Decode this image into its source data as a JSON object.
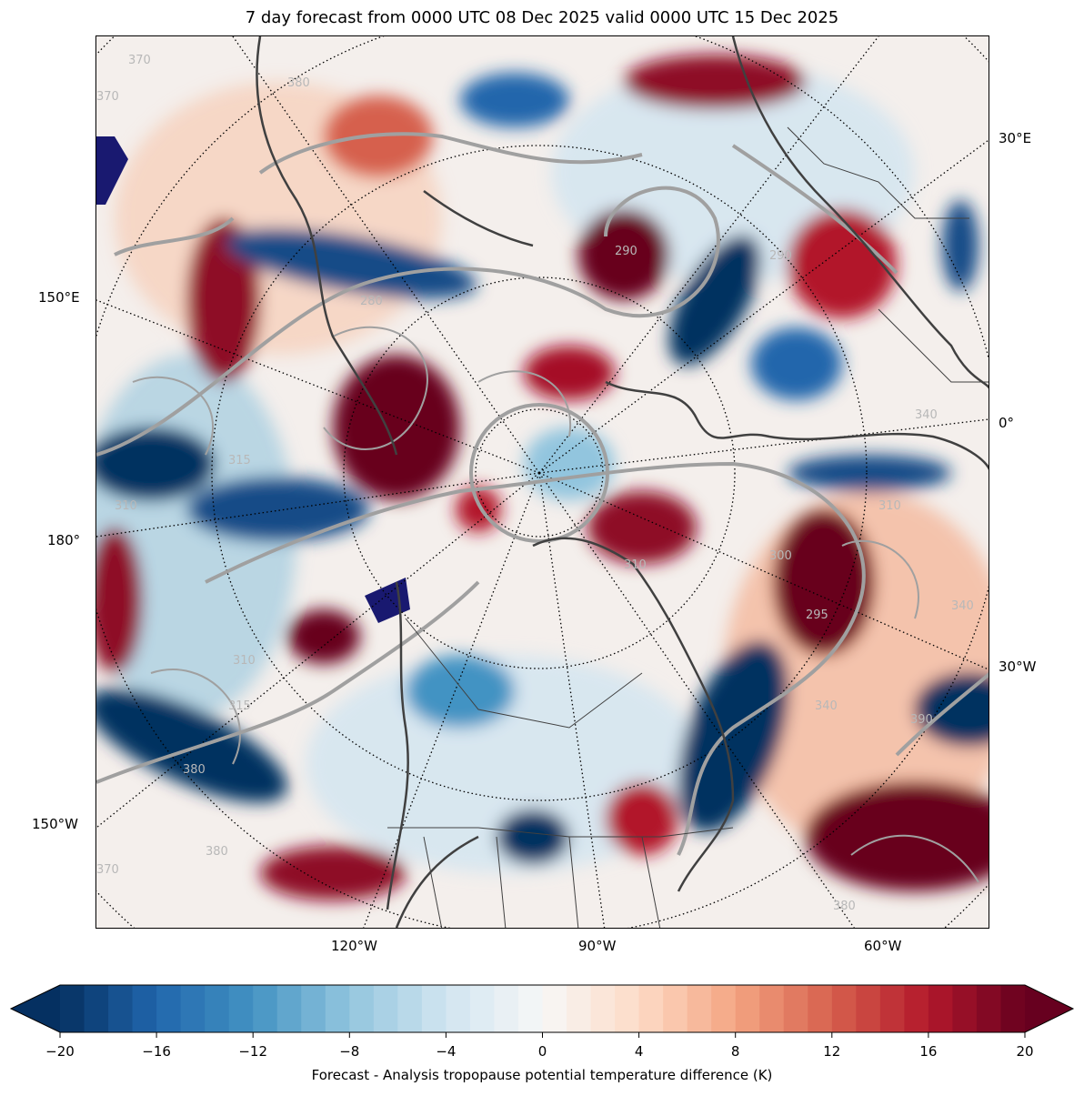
{
  "title": "7 day forecast from 0000 UTC 08 Dec 2025 valid 0000 UTC 15 Dec 2025",
  "map": {
    "projection": "north-polar-stereographic",
    "longitude_labels": [
      "30°E",
      "150°E",
      "0°",
      "180°",
      "30°W",
      "150°W",
      "120°W",
      "90°W",
      "60°W"
    ],
    "contour_labels": [
      "370",
      "370",
      "380",
      "290",
      "290",
      "280",
      "315",
      "310",
      "310",
      "300",
      "295",
      "310",
      "340",
      "340",
      "380",
      "380",
      "370",
      "380",
      "310",
      "390",
      "315",
      "340"
    ],
    "colors": {
      "positive": "#67001f",
      "negative": "#053061",
      "contour": "#a0a0a0",
      "coast": "#404040",
      "extreme_negative": "#191970"
    }
  },
  "colorbar": {
    "min": -20,
    "max": 20,
    "step": 1,
    "extend": "both",
    "ticks": [
      "−20",
      "−16",
      "−12",
      "−8",
      "−4",
      "0",
      "4",
      "8",
      "12",
      "16",
      "20"
    ],
    "label": "Forecast - Analysis tropopause potential temperature difference (K)",
    "colormap": "RdBu_r"
  }
}
